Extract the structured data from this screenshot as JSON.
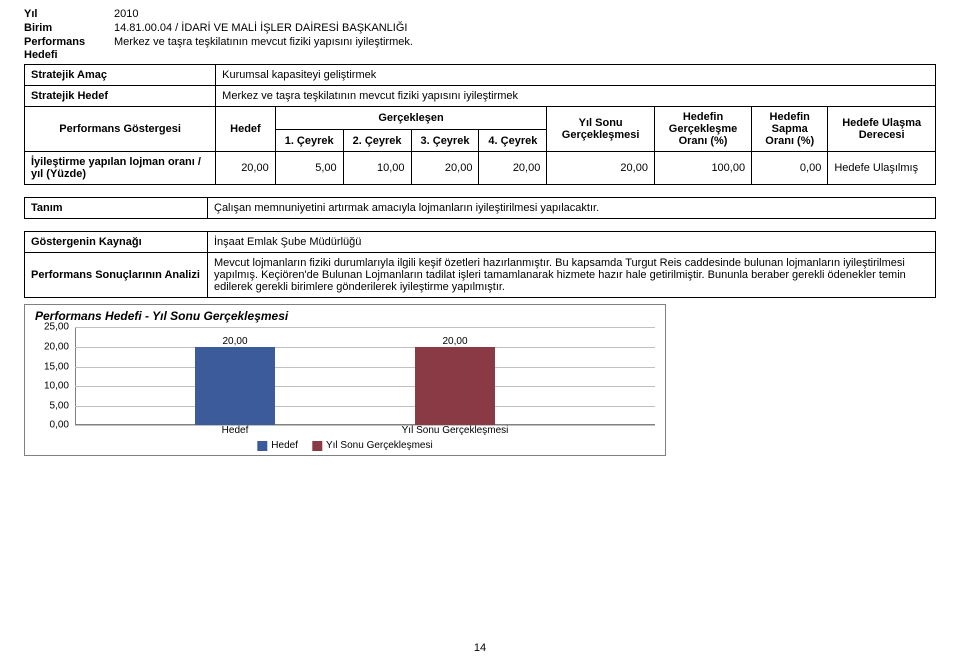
{
  "header": {
    "yil_label": "Yıl",
    "yil_value": "2010",
    "birim_label": "Birim",
    "birim_value": "14.81.00.04 / İDARİ VE MALİ İŞLER DAİRESİ BAŞKANLIĞI",
    "perf_hedefi_label": "Performans Hedefi",
    "perf_hedefi_value": "Merkez ve taşra teşkilatının mevcut fiziki yapısını iyileştirmek."
  },
  "rows": {
    "stratejik_amac_label": "Stratejik Amaç",
    "stratejik_amac_value": "Kurumsal kapasiteyi geliştirmek",
    "stratejik_hedef_label": "Stratejik Hedef",
    "stratejik_hedef_value": "Merkez ve taşra teşkilatının mevcut fiziki yapısını iyileştirmek"
  },
  "table_head": {
    "gostergesi": "Performans Göstergesi",
    "hedef": "Hedef",
    "gerceklesen": "Gerçekleşen",
    "c1": "1. Çeyrek",
    "c2": "2. Çeyrek",
    "c3": "3. Çeyrek",
    "c4": "4. Çeyrek",
    "yil_sonu": "Yıl Sonu Gerçekleşmesi",
    "hedefin_orani": "Hedefin Gerçekleşme Oranı (%)",
    "hedefin_sapma": "Hedefin Sapma Oranı (%)",
    "hedefe_ulasma": "Hedefe Ulaşma Derecesi"
  },
  "data_row": {
    "label": "İyileştirme yapılan lojman oranı / yıl (Yüzde)",
    "hedef": "20,00",
    "c1": "5,00",
    "c2": "10,00",
    "c3": "20,00",
    "c4": "20,00",
    "yil_sonu": "20,00",
    "hedefin_orani": "100,00",
    "hedefin_sapma": "0,00",
    "hedefe_ulasma": "Hedefe Ulaşılmış"
  },
  "meta": {
    "tanim_label": "Tanım",
    "tanim_value": "Çalışan memnuniyetini artırmak amacıyla lojmanların iyileştirilmesi yapılacaktır.",
    "kaynak_label": "Göstergenin Kaynağı",
    "kaynak_value": "İnşaat Emlak Şube Müdürlüğü",
    "analiz_label": "Performans Sonuçlarının Analizi",
    "analiz_value": "Mevcut lojmanların fiziki durumlarıyla ilgili keşif özetleri hazırlanmıştır. Bu kapsamda Turgut Reis caddesinde bulunan lojmanların iyileştirilmesi yapılmış. Keçiören'de Bulunan Lojmanların tadilat işleri tamamlanarak hizmete hazır hale getirilmiştir. Bununla beraber gerekli ödenekler temin edilerek gerekli birimlere gönderilerek iyileştirme yapılmıştır."
  },
  "chart": {
    "title": "Performans Hedefi - Yıl Sonu Gerçekleşmesi",
    "categories": [
      "Hedef",
      "Yıl Sonu Gerçekleşmesi"
    ],
    "values": [
      20.0,
      20.0
    ],
    "value_labels": [
      "20,00",
      "20,00"
    ],
    "bar_colors": [
      "#3b5b9a",
      "#8a3a44"
    ],
    "ylim": [
      0,
      25
    ],
    "yticks": [
      "0,00",
      "5,00",
      "10,00",
      "15,00",
      "20,00",
      "25,00"
    ],
    "ytick_vals": [
      0,
      5,
      10,
      15,
      20,
      25
    ],
    "background_color": "#ffffff",
    "grid_color": "#c0c0c0",
    "font_size": 10
  },
  "page_number": "14"
}
